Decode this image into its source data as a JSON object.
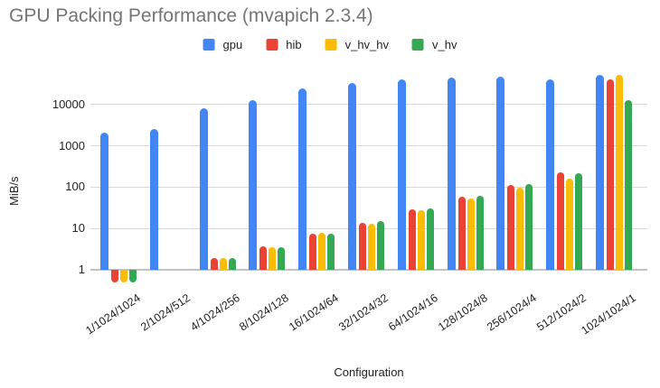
{
  "title": "GPU Packing Performance (mvapich 2.3.4)",
  "colors": {
    "title_text": "#757575",
    "axis_text": "#222222",
    "gridline": "#d9d9d9",
    "baseline": "#c2c2c2",
    "background": "#ffffff",
    "series_blue": "#4285F4",
    "series_red": "#EA4335",
    "series_yellow": "#FBBC04",
    "series_green": "#34A853"
  },
  "chart_data": {
    "type": "bar",
    "title": "GPU Packing Performance (mvapich 2.3.4)",
    "xlabel": "Configuration",
    "ylabel": "MiB/s",
    "y_scale": "log",
    "y_ticks": [
      1,
      10,
      100,
      1000,
      10000
    ],
    "ylim": [
      0.45,
      60000
    ],
    "grid": true,
    "legend_position": "top",
    "categories": [
      "1/1024/1024",
      "2/1024/512",
      "4/1024/256",
      "8/1024/128",
      "16/1024/64",
      "32/1024/32",
      "64/1024/16",
      "128/1024/8",
      "256/1024/4",
      "512/1024/2",
      "1024/1024/1"
    ],
    "series": [
      {
        "name": "gpu",
        "color": "#4285F4",
        "values": [
          2100,
          2600,
          8300,
          12800,
          24000,
          33000,
          40000,
          44000,
          47000,
          41000,
          51000
        ]
      },
      {
        "name": "hib",
        "color": "#EA4335",
        "values": [
          0.5,
          null,
          1.9,
          3.7,
          7.6,
          14,
          29,
          60,
          112,
          230,
          41000
        ]
      },
      {
        "name": "v_hv_hv",
        "color": "#FBBC04",
        "values": [
          0.5,
          null,
          1.9,
          3.6,
          7.7,
          13,
          27,
          52,
          95,
          160,
          53000
        ]
      },
      {
        "name": "v_hv",
        "color": "#34A853",
        "values": [
          0.5,
          null,
          1.9,
          3.6,
          7.6,
          15,
          30,
          62,
          118,
          220,
          13000
        ]
      }
    ]
  }
}
